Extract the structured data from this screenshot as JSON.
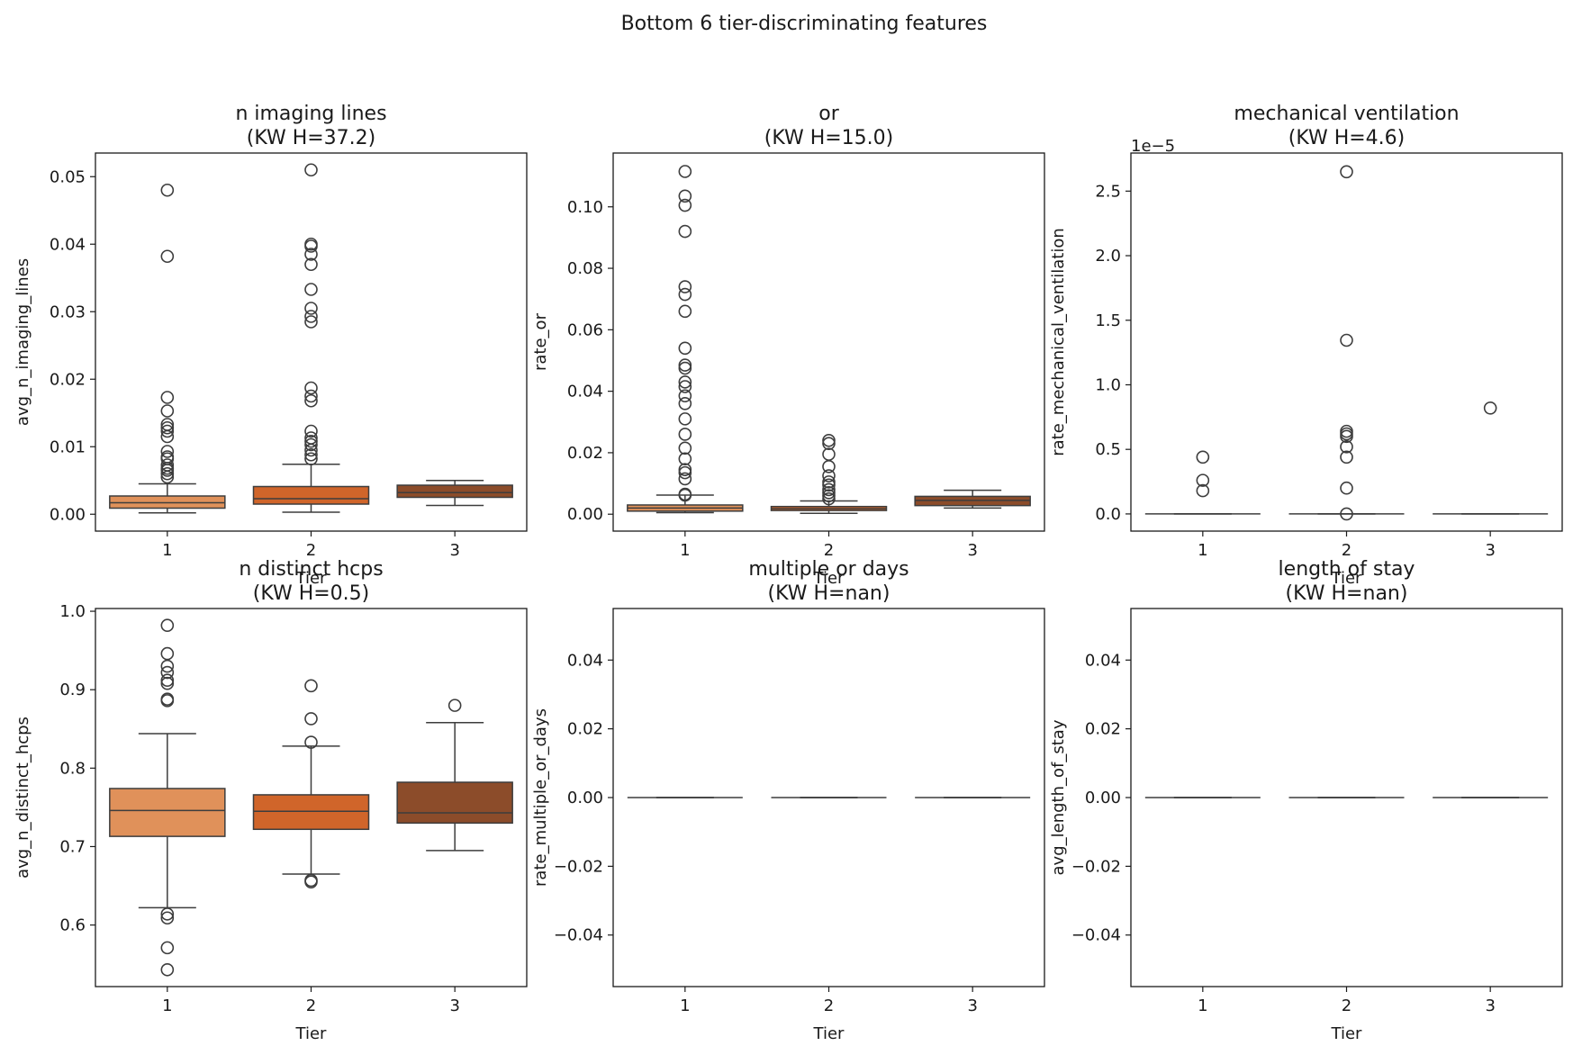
{
  "figure_title": "Bottom 6 tier-discriminating features",
  "colors": {
    "tier1": "#e0915a",
    "tier2": "#d0652a",
    "tier3": "#8c4c2a",
    "edge": "#3d3d3d",
    "frame": "#1a1a1a",
    "text": "#1a1a1a"
  },
  "chart_data": [
    {
      "type": "box",
      "title_line1": "n imaging lines",
      "title_line2": "(KW H=37.2)",
      "xlabel": "Tier",
      "ylabel": "avg_n_imaging_lines",
      "categories": [
        "1",
        "2",
        "3"
      ],
      "ylim": [
        -0.0025,
        0.0535
      ],
      "yticks": [
        0.0,
        0.01,
        0.02,
        0.03,
        0.04,
        0.05
      ],
      "ytick_labels": [
        "0.00",
        "0.01",
        "0.02",
        "0.03",
        "0.04",
        "0.05"
      ],
      "offset_label": "",
      "boxes": [
        {
          "tier": "1",
          "whisker_low": 0.0002,
          "q1": 0.0009,
          "median": 0.0017,
          "q3": 0.0027,
          "whisker_high": 0.0045,
          "outliers": [
            0.048,
            0.0382,
            0.0173,
            0.0153,
            0.0133,
            0.0128,
            0.0123,
            0.0115,
            0.0093,
            0.0085,
            0.0082,
            0.0073,
            0.0068,
            0.0065,
            0.006,
            0.0055
          ]
        },
        {
          "tier": "2",
          "whisker_low": 0.0003,
          "q1": 0.0015,
          "median": 0.0023,
          "q3": 0.0041,
          "whisker_high": 0.0074,
          "outliers": [
            0.051,
            0.04,
            0.0397,
            0.0385,
            0.037,
            0.0333,
            0.0305,
            0.0293,
            0.0285,
            0.0187,
            0.0175,
            0.0168,
            0.0123,
            0.0113,
            0.0108,
            0.0103,
            0.0095,
            0.0088,
            0.0082
          ]
        },
        {
          "tier": "3",
          "whisker_low": 0.0013,
          "q1": 0.0025,
          "median": 0.0032,
          "q3": 0.0043,
          "whisker_high": 0.005,
          "outliers": []
        }
      ]
    },
    {
      "type": "box",
      "title_line1": "or",
      "title_line2": "(KW H=15.0)",
      "xlabel": "Tier",
      "ylabel": "rate_or",
      "categories": [
        "1",
        "2",
        "3"
      ],
      "ylim": [
        -0.0055,
        0.1175
      ],
      "yticks": [
        0.0,
        0.02,
        0.04,
        0.06,
        0.08,
        0.1
      ],
      "ytick_labels": [
        "0.00",
        "0.02",
        "0.04",
        "0.06",
        "0.08",
        "0.10"
      ],
      "offset_label": "",
      "boxes": [
        {
          "tier": "1",
          "whisker_low": 0.0005,
          "q1": 0.001,
          "median": 0.002,
          "q3": 0.003,
          "whisker_high": 0.0062,
          "outliers": [
            0.1115,
            0.1035,
            0.1005,
            0.092,
            0.074,
            0.0715,
            0.066,
            0.054,
            0.0485,
            0.0475,
            0.043,
            0.0415,
            0.0385,
            0.036,
            0.031,
            0.026,
            0.0215,
            0.018,
            0.0145,
            0.0135,
            0.0115,
            0.0065,
            0.0062
          ]
        },
        {
          "tier": "2",
          "whisker_low": 0.0003,
          "q1": 0.0012,
          "median": 0.0018,
          "q3": 0.0025,
          "whisker_high": 0.0043,
          "outliers": [
            0.024,
            0.023,
            0.0195,
            0.0155,
            0.0125,
            0.0105,
            0.0095,
            0.008,
            0.007,
            0.006,
            0.005
          ]
        },
        {
          "tier": "3",
          "whisker_low": 0.002,
          "q1": 0.0028,
          "median": 0.0045,
          "q3": 0.0058,
          "whisker_high": 0.0078,
          "outliers": []
        }
      ]
    },
    {
      "type": "box",
      "title_line1": "mechanical ventilation",
      "title_line2": "(KW H=4.6)",
      "xlabel": "Tier",
      "ylabel": "rate_mechanical_ventilation",
      "categories": [
        "1",
        "2",
        "3"
      ],
      "ylim": [
        -0.133,
        2.795
      ],
      "yticks": [
        0.0,
        0.5,
        1.0,
        1.5,
        2.0,
        2.5
      ],
      "ytick_labels": [
        "0.0",
        "0.5",
        "1.0",
        "1.5",
        "2.0",
        "2.5"
      ],
      "offset_label": "1e−5",
      "boxes": [
        {
          "tier": "1",
          "whisker_low": 0.0,
          "q1": 0.0,
          "median": 0.0,
          "q3": 0.0,
          "whisker_high": 0.0,
          "outliers": [
            0.44,
            0.26,
            0.18
          ]
        },
        {
          "tier": "2",
          "whisker_low": 0.0,
          "q1": 0.0,
          "median": 0.0,
          "q3": 0.0,
          "whisker_high": 0.0,
          "outliers": [
            2.65,
            1.345,
            0.64,
            0.62,
            0.6,
            0.52,
            0.44,
            0.2,
            0.0
          ]
        },
        {
          "tier": "3",
          "whisker_low": 0.0,
          "q1": 0.0,
          "median": 0.0,
          "q3": 0.0,
          "whisker_high": 0.0,
          "outliers": [
            0.82
          ]
        }
      ]
    },
    {
      "type": "box",
      "title_line1": "n distinct hcps",
      "title_line2": "(KW H=0.5)",
      "xlabel": "Tier",
      "ylabel": "avg_n_distinct_hcps",
      "categories": [
        "1",
        "2",
        "3"
      ],
      "ylim": [
        0.5215,
        1.0035
      ],
      "yticks": [
        0.6,
        0.7,
        0.8,
        0.9,
        1.0
      ],
      "ytick_labels": [
        "0.6",
        "0.7",
        "0.8",
        "0.9",
        "1.0"
      ],
      "offset_label": "",
      "boxes": [
        {
          "tier": "1",
          "whisker_low": 0.622,
          "q1": 0.713,
          "median": 0.746,
          "q3": 0.774,
          "whisker_high": 0.844,
          "outliers": [
            0.982,
            0.946,
            0.93,
            0.922,
            0.912,
            0.908,
            0.888,
            0.886,
            0.614,
            0.609,
            0.571,
            0.543
          ]
        },
        {
          "tier": "2",
          "whisker_low": 0.665,
          "q1": 0.722,
          "median": 0.745,
          "q3": 0.766,
          "whisker_high": 0.828,
          "outliers": [
            0.905,
            0.863,
            0.833,
            0.657,
            0.655
          ]
        },
        {
          "tier": "3",
          "whisker_low": 0.695,
          "q1": 0.73,
          "median": 0.743,
          "q3": 0.782,
          "whisker_high": 0.858,
          "outliers": [
            0.88
          ]
        }
      ]
    },
    {
      "type": "box",
      "title_line1": "multiple or days",
      "title_line2": "(KW H=nan)",
      "xlabel": "Tier",
      "ylabel": "rate_multiple_or_days",
      "categories": [
        "1",
        "2",
        "3"
      ],
      "ylim": [
        -0.055,
        0.055
      ],
      "yticks": [
        -0.04,
        -0.02,
        0.0,
        0.02,
        0.04
      ],
      "ytick_labels": [
        "−0.04",
        "−0.02",
        "0.00",
        "0.02",
        "0.04"
      ],
      "offset_label": "",
      "boxes": [
        {
          "tier": "1",
          "whisker_low": 0.0,
          "q1": 0.0,
          "median": 0.0,
          "q3": 0.0,
          "whisker_high": 0.0,
          "outliers": []
        },
        {
          "tier": "2",
          "whisker_low": 0.0,
          "q1": 0.0,
          "median": 0.0,
          "q3": 0.0,
          "whisker_high": 0.0,
          "outliers": []
        },
        {
          "tier": "3",
          "whisker_low": 0.0,
          "q1": 0.0,
          "median": 0.0,
          "q3": 0.0,
          "whisker_high": 0.0,
          "outliers": []
        }
      ]
    },
    {
      "type": "box",
      "title_line1": "length of stay",
      "title_line2": "(KW H=nan)",
      "xlabel": "Tier",
      "ylabel": "avg_length_of_stay",
      "categories": [
        "1",
        "2",
        "3"
      ],
      "ylim": [
        -0.055,
        0.055
      ],
      "yticks": [
        -0.04,
        -0.02,
        0.0,
        0.02,
        0.04
      ],
      "ytick_labels": [
        "−0.04",
        "−0.02",
        "0.00",
        "0.02",
        "0.04"
      ],
      "offset_label": "",
      "boxes": [
        {
          "tier": "1",
          "whisker_low": 0.0,
          "q1": 0.0,
          "median": 0.0,
          "q3": 0.0,
          "whisker_high": 0.0,
          "outliers": []
        },
        {
          "tier": "2",
          "whisker_low": 0.0,
          "q1": 0.0,
          "median": 0.0,
          "q3": 0.0,
          "whisker_high": 0.0,
          "outliers": []
        },
        {
          "tier": "3",
          "whisker_low": 0.0,
          "q1": 0.0,
          "median": 0.0,
          "q3": 0.0,
          "whisker_high": 0.0,
          "outliers": []
        }
      ]
    }
  ]
}
